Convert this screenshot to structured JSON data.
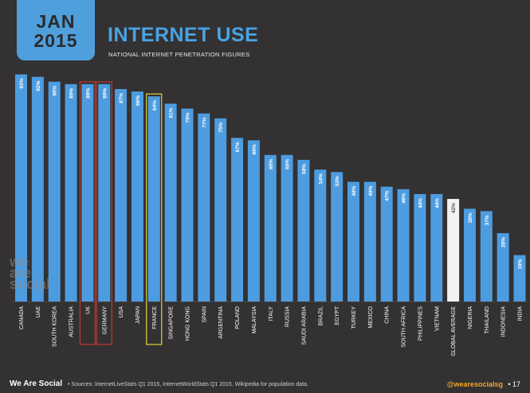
{
  "header": {
    "month": "JAN",
    "year": "2015",
    "title": "INTERNET USE",
    "subtitle": "NATIONAL INTERNET PENETRATION FIGURES"
  },
  "watermark": [
    "we",
    "are",
    "social"
  ],
  "footer": {
    "brand": "We Are Social",
    "sources": "• Sources: InternetLiveStats Q1 2015, InternetWorldStats Q1 2015. Wikipedia for population data.",
    "handle": "@wearesocialsg",
    "page": "• 17"
  },
  "colors": {
    "bar": "#4d9ce0",
    "average_bar": "#f2f2f2",
    "background": "#333132",
    "uk_germany_highlight": "#c0392b",
    "france_highlight": "#e6d33a"
  },
  "chart_data": {
    "type": "bar",
    "title": "INTERNET USE",
    "subtitle": "NATIONAL INTERNET PENETRATION FIGURES",
    "ylim": [
      0,
      100
    ],
    "categories": [
      "CANADA",
      "UAE",
      "SOUTH KOREA",
      "AUSTRALIA",
      "UK",
      "GERMANY",
      "USA",
      "JAPAN",
      "FRANCE",
      "SINGAPORE",
      "HONG KONG",
      "SPAIN",
      "ARGENTINA",
      "POLAND",
      "MALAYSIA",
      "ITALY",
      "RUSSIA",
      "SAUDI ARABIA",
      "BRAZIL",
      "EGYPT",
      "TURKEY",
      "MEXICO",
      "CHINA",
      "SOUTH AFRICA",
      "PHILIPPINES",
      "VIETNAM",
      "GLOBAL AVERAGE",
      "NIGERIA",
      "THAILAND",
      "INDONESIA",
      "INDIA"
    ],
    "values": [
      93,
      92,
      90,
      89,
      89,
      89,
      87,
      86,
      84,
      81,
      79,
      77,
      75,
      67,
      66,
      60,
      60,
      58,
      54,
      53,
      49,
      49,
      47,
      46,
      44,
      44,
      42,
      38,
      37,
      28,
      19
    ],
    "value_labels": [
      "93%",
      "92%",
      "90%",
      "89%",
      "89%",
      "89%",
      "87%",
      "86%",
      "84%",
      "81%",
      "79%",
      "77%",
      "75%",
      "67%",
      "66%",
      "60%",
      "60%",
      "58%",
      "54%",
      "53%",
      "49%",
      "49%",
      "47%",
      "46%",
      "44%",
      "44%",
      "42%",
      "38%",
      "37%",
      "28%",
      "19%"
    ],
    "highlighted": {
      "GLOBAL AVERAGE": "average",
      "UK": "red-box",
      "GERMANY": "red-box",
      "FRANCE": "yellow-box"
    }
  }
}
